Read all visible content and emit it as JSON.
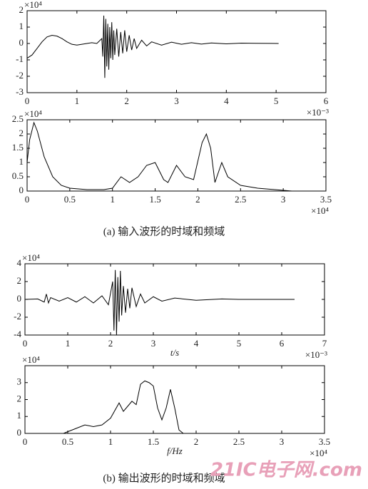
{
  "chart_data": [
    {
      "type": "line",
      "y_scale_label": "×10⁴",
      "x_scale_label": "×10⁻³",
      "xlim": [
        0,
        6
      ],
      "xticks": [
        0,
        1,
        2,
        3,
        4,
        5,
        6
      ],
      "ylim": [
        -3,
        2
      ],
      "yticks": [
        -3,
        -2,
        -1,
        0,
        1,
        2
      ],
      "x": [
        0,
        0.1,
        0.2,
        0.3,
        0.4,
        0.5,
        0.6,
        0.7,
        0.8,
        0.9,
        1.0,
        1.1,
        1.2,
        1.3,
        1.4,
        1.5,
        1.52,
        1.54,
        1.56,
        1.58,
        1.6,
        1.62,
        1.64,
        1.66,
        1.68,
        1.7,
        1.72,
        1.74,
        1.76,
        1.8,
        1.84,
        1.88,
        1.92,
        1.96,
        2.0,
        2.05,
        2.1,
        2.15,
        2.2,
        2.3,
        2.4,
        2.5,
        2.7,
        2.9,
        3.1,
        3.3,
        3.5,
        3.7,
        4.0,
        4.3,
        4.6,
        5.05
      ],
      "series": [
        {
          "color": "#000000",
          "values": [
            -0.9,
            -0.7,
            -0.3,
            0.1,
            0.4,
            0.5,
            0.45,
            0.3,
            0.1,
            -0.05,
            -0.1,
            -0.05,
            0,
            0.05,
            0,
            0.3,
            -0.8,
            1.7,
            -2.1,
            1.5,
            -1.4,
            1.2,
            -1.6,
            1.0,
            -0.9,
            1.3,
            -1.0,
            0.8,
            -0.7,
            0.9,
            -0.8,
            0.7,
            -0.6,
            0.8,
            -0.5,
            0.5,
            -0.4,
            0.3,
            -0.3,
            0.2,
            -0.15,
            0.1,
            -0.1,
            0.08,
            -0.05,
            0.05,
            -0.04,
            0.03,
            -0.02,
            0.02,
            0.01,
            0
          ]
        }
      ]
    },
    {
      "type": "line",
      "y_scale_label": "×10⁴",
      "x_scale_label": "×10⁴",
      "xlim": [
        0,
        3.5
      ],
      "xticks": [
        0,
        0.5,
        1,
        1.5,
        2,
        2.5,
        3,
        3.5
      ],
      "ylim": [
        0,
        2.5
      ],
      "yticks": [
        0,
        0.5,
        1,
        1.5,
        2,
        2.5
      ],
      "x": [
        0,
        0.03,
        0.08,
        0.12,
        0.2,
        0.3,
        0.4,
        0.5,
        0.7,
        0.9,
        1.0,
        1.1,
        1.2,
        1.3,
        1.4,
        1.5,
        1.6,
        1.65,
        1.75,
        1.85,
        1.95,
        2.05,
        2.1,
        2.15,
        2.2,
        2.28,
        2.35,
        2.5,
        2.7,
        2.9,
        3.1
      ],
      "series": [
        {
          "color": "#000000",
          "values": [
            1.0,
            1.8,
            2.4,
            2.1,
            1.2,
            0.5,
            0.2,
            0.1,
            0.05,
            0.05,
            0.1,
            0.5,
            0.3,
            0.5,
            0.9,
            1.0,
            0.4,
            0.3,
            0.9,
            0.5,
            0.4,
            1.7,
            2.0,
            1.5,
            0.3,
            1.0,
            0.5,
            0.2,
            0.1,
            0.05,
            0
          ]
        }
      ]
    },
    {
      "type": "line",
      "y_scale_label": "×10⁴",
      "x_scale_label": "×10⁻³",
      "xlabel": "t/s",
      "xlim": [
        0,
        7
      ],
      "xticks": [
        0,
        1,
        2,
        3,
        4,
        5,
        6,
        7
      ],
      "ylim": [
        -4,
        4
      ],
      "yticks": [
        -4,
        -2,
        0,
        2,
        4
      ],
      "x": [
        0,
        0.3,
        0.45,
        0.5,
        0.55,
        0.6,
        0.8,
        1.0,
        1.2,
        1.4,
        1.6,
        1.8,
        1.95,
        2.05,
        2.08,
        2.11,
        2.14,
        2.17,
        2.2,
        2.23,
        2.26,
        2.3,
        2.35,
        2.4,
        2.45,
        2.5,
        2.6,
        2.7,
        2.8,
        3.0,
        3.2,
        3.5,
        4.0,
        4.6,
        5.0,
        6.3
      ],
      "series": [
        {
          "color": "#000000",
          "values": [
            0,
            0.05,
            -0.3,
            0.6,
            -0.4,
            0.2,
            -0.2,
            0.2,
            -0.3,
            0.3,
            -0.4,
            0.4,
            -0.6,
            2.0,
            -3.5,
            3.3,
            -4.0,
            2.5,
            -2.5,
            3.2,
            -1.8,
            1.5,
            -1.5,
            1.2,
            -1.0,
            1.3,
            -0.8,
            0.6,
            -0.4,
            0.3,
            -0.2,
            0.15,
            -0.1,
            0.05,
            0,
            0
          ]
        }
      ]
    },
    {
      "type": "line",
      "y_scale_label": "×10⁴",
      "x_scale_label": "×10⁴",
      "xlabel": "f/Hz",
      "xlim": [
        0,
        3.5
      ],
      "xticks": [
        0,
        0.5,
        1,
        1.5,
        2,
        2.5,
        3,
        3.5
      ],
      "ylim": [
        0,
        4
      ],
      "yticks": [
        0,
        1,
        2,
        3
      ],
      "x": [
        0,
        0.45,
        0.5,
        0.6,
        0.7,
        0.8,
        0.9,
        1.0,
        1.1,
        1.15,
        1.2,
        1.25,
        1.3,
        1.35,
        1.4,
        1.45,
        1.5,
        1.55,
        1.6,
        1.65,
        1.7,
        1.75,
        1.8,
        1.85,
        3.1
      ],
      "series": [
        {
          "color": "#000000",
          "values": [
            0,
            0,
            0.1,
            0.3,
            0.5,
            0.4,
            0.5,
            0.9,
            1.8,
            1.3,
            1.6,
            1.9,
            1.7,
            2.9,
            3.1,
            3.0,
            2.8,
            1.5,
            0.8,
            1.5,
            2.6,
            1.5,
            0.2,
            0,
            0
          ]
        }
      ]
    }
  ],
  "captions": [
    "(a) 输入波形的时域和频域",
    "(b) 输出波形的时域和频域"
  ],
  "watermark": "21IC电子网.com"
}
